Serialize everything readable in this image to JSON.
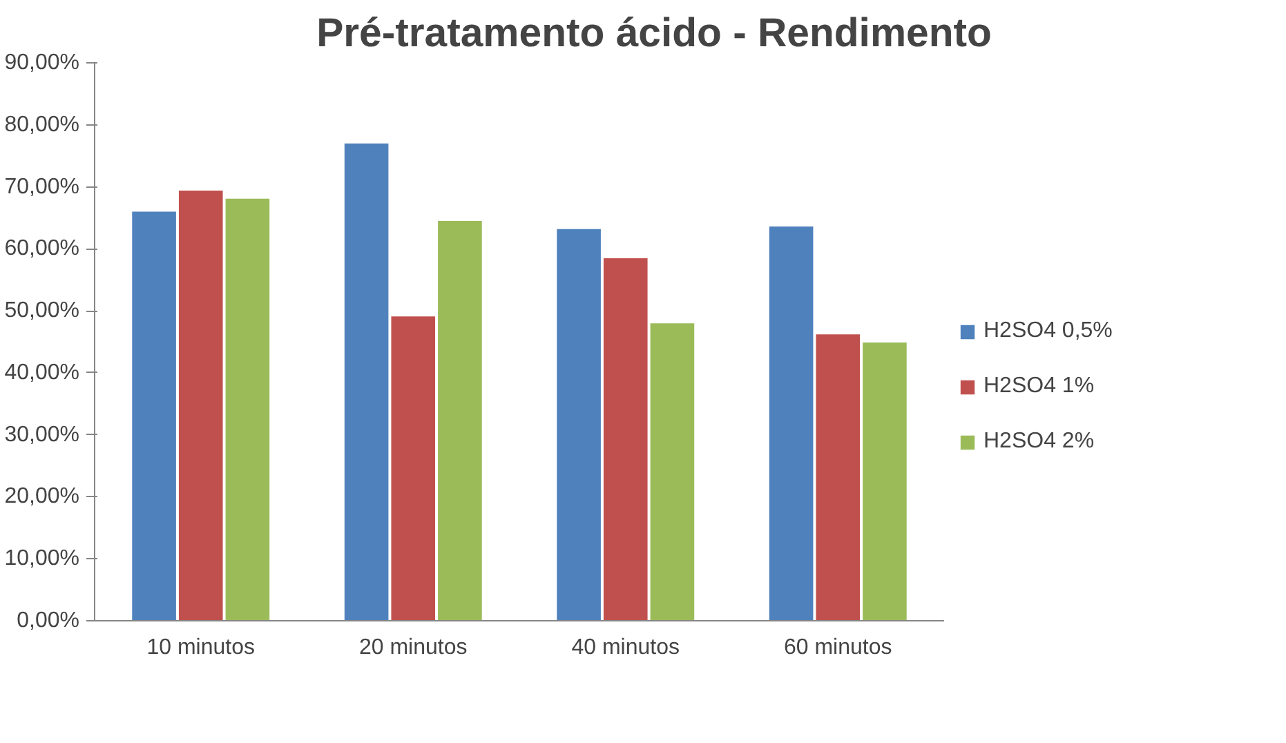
{
  "chart_data": {
    "type": "bar",
    "title": "Pré-tratamento ácido - Rendimento",
    "categories": [
      "10 minutos",
      "20 minutos",
      "40 minutos",
      "60 minutos"
    ],
    "series": [
      {
        "name": "H2SO4 0,5%",
        "color": "#4f81bd",
        "values": [
          66.1,
          77.1,
          63.3,
          63.7
        ]
      },
      {
        "name": "H2SO4 1%",
        "color": "#c0504d",
        "values": [
          69.5,
          49.2,
          58.6,
          46.3
        ]
      },
      {
        "name": "H2SO4 2%",
        "color": "#9bbb59",
        "values": [
          68.2,
          64.6,
          48.1,
          45.0
        ]
      }
    ],
    "ylim": [
      0,
      90
    ],
    "yticks": [
      {
        "value": 0,
        "label": "0,00%"
      },
      {
        "value": 10,
        "label": "10,00%"
      },
      {
        "value": 20,
        "label": "20,00%"
      },
      {
        "value": 30,
        "label": "30,00%"
      },
      {
        "value": 40,
        "label": "40,00%"
      },
      {
        "value": 50,
        "label": "50,00%"
      },
      {
        "value": 60,
        "label": "60,00%"
      },
      {
        "value": 70,
        "label": "70,00%"
      },
      {
        "value": 80,
        "label": "80,00%"
      },
      {
        "value": 90,
        "label": "90,00%"
      }
    ],
    "grid": false,
    "legend": "right"
  }
}
